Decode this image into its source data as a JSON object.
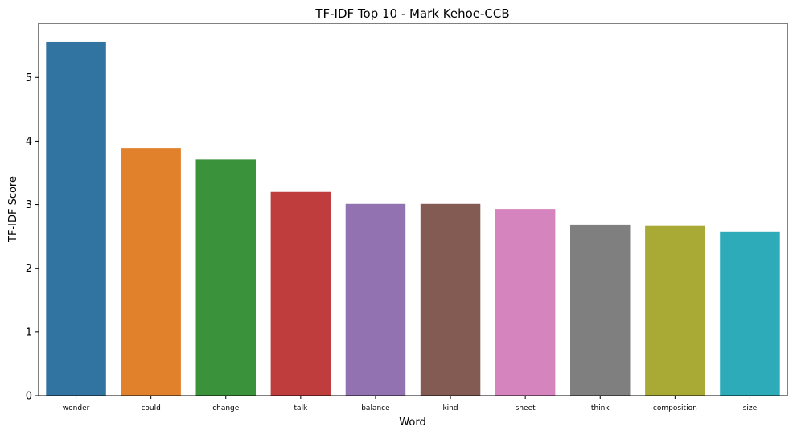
{
  "chart_data": {
    "type": "bar",
    "title": "TF-IDF Top 10 - Mark Kehoe-CCB",
    "xlabel": "Word",
    "ylabel": "TF-IDF Score",
    "categories": [
      "wonder",
      "could",
      "change",
      "talk",
      "balance",
      "kind",
      "sheet",
      "think",
      "composition",
      "size"
    ],
    "values": [
      5.56,
      3.89,
      3.71,
      3.2,
      3.01,
      3.01,
      2.93,
      2.68,
      2.67,
      2.58
    ],
    "colors": [
      "#3274a1",
      "#e1812c",
      "#3a923a",
      "#c03d3e",
      "#9372b2",
      "#845b53",
      "#d684bd",
      "#7f7f7f",
      "#a9aa35",
      "#2eabb8"
    ],
    "ylim": [
      0,
      5.85
    ],
    "yticks": [
      0,
      1,
      2,
      3,
      4,
      5
    ],
    "grid": false,
    "legend": "none"
  }
}
